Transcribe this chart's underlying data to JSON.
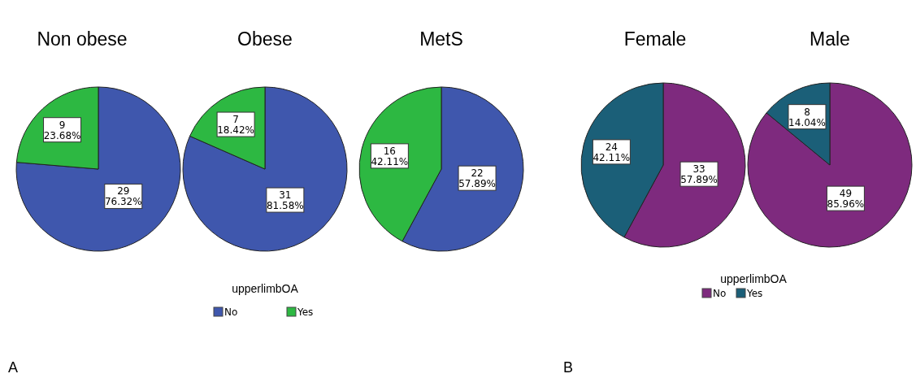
{
  "chart_data": [
    {
      "type": "pie",
      "title": "Non obese",
      "values": [
        29,
        9
      ],
      "colors": [
        "#3f57ad",
        "#2db842"
      ],
      "value_labels": [
        "29\n76.32%",
        "9\n23.68%"
      ],
      "annotations": [
        "A"
      ]
    },
    {
      "type": "pie",
      "title": "Obese",
      "categories": [
        "No",
        "Yes"
      ],
      "values": [
        31,
        7
      ],
      "colors": [
        "#3f57ad",
        "#2db842"
      ],
      "value_labels": [
        "31\n81.58%",
        "7\n18.42%"
      ],
      "legend": "bottom",
      "legend_title": "upperlimbOA"
    },
    {
      "type": "pie",
      "title": "MetS",
      "values": [
        22,
        16
      ],
      "colors": [
        "#3f57ad",
        "#2db842"
      ],
      "value_labels": [
        "22\n57.89%",
        "16\n42.11%"
      ]
    },
    {
      "type": "pie",
      "title": "Female",
      "categories": [
        "No",
        "Yes"
      ],
      "values": [
        33,
        24
      ],
      "colors": [
        "#7e2a7e",
        "#1b5f78"
      ],
      "value_labels": [
        "33\n57.89%",
        "24\n42.11%"
      ],
      "annotations": [
        "B"
      ],
      "legend": "bottom right",
      "legend_title": "upperlimbOA"
    },
    {
      "type": "pie",
      "title": "Male",
      "values": [
        49,
        8
      ],
      "colors": [
        "#7e2a7e",
        "#1b5f78"
      ],
      "value_labels": [
        "49\n85.96%",
        "8\n14.04%"
      ]
    }
  ]
}
